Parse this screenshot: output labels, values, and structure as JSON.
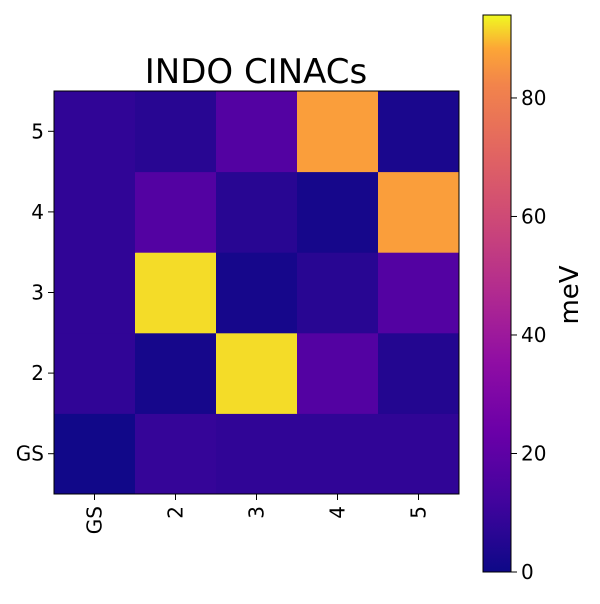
{
  "chart_data": {
    "type": "heatmap",
    "title": "INDO CINACs",
    "xlabel": "",
    "ylabel": "",
    "x_categories": [
      "GS",
      "2",
      "3",
      "4",
      "5"
    ],
    "y_categories": [
      "GS",
      "2",
      "3",
      "4",
      "5"
    ],
    "values": [
      [
        1,
        9,
        8,
        8,
        8
      ],
      [
        8,
        2,
        92,
        17,
        5
      ],
      [
        8,
        92,
        2,
        6,
        17
      ],
      [
        8,
        17,
        6,
        2,
        87
      ],
      [
        8,
        6,
        17,
        87,
        3
      ]
    ],
    "colorbar": {
      "label": "meV",
      "range": [
        0,
        94
      ],
      "ticks": [
        "0",
        "20",
        "40",
        "60",
        "80"
      ],
      "tick_values": [
        0,
        20,
        40,
        60,
        80
      ],
      "colormap": "plasma"
    },
    "grid": false
  }
}
